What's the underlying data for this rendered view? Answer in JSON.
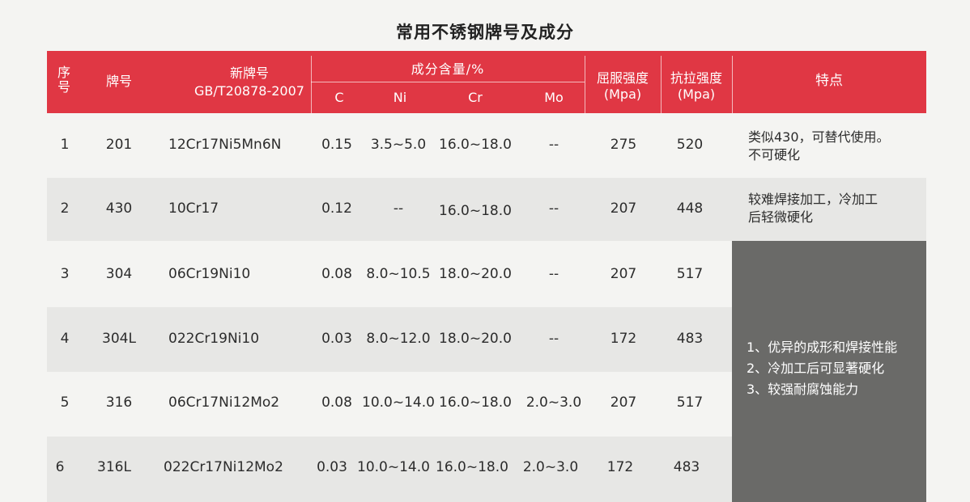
{
  "title": "常用不锈钢牌号及成分",
  "header": {
    "seq": "序号",
    "grade": "牌号",
    "new_grade_line1": "新牌号",
    "new_grade_line2": "GB/T20878-2007",
    "composition": "成分含量/%",
    "c": "C",
    "ni": "Ni",
    "cr": "Cr",
    "mo": "Mo",
    "yield": "屈服强度",
    "yield_unit": "(Mpa)",
    "tensile": "抗拉强度",
    "tensile_unit": "(Mpa)",
    "feature": "特点"
  },
  "rows": [
    {
      "seq": "1",
      "grade": "201",
      "new_grade": "12Cr17Ni5Mn6N",
      "c": "0.15",
      "ni": "3.5~5.0",
      "cr": "16.0~18.0",
      "mo": "--",
      "yield": "275",
      "tensile": "520",
      "feature_line1": "类似430，可替代使用。",
      "feature_line2": "不可硬化"
    },
    {
      "seq": "2",
      "grade": "430",
      "new_grade": "10Cr17",
      "c": "0.12",
      "ni": "--",
      "cr": "16.0~18.0",
      "mo": "--",
      "yield": "207",
      "tensile": "448",
      "feature_line1": "较难焊接加工，冷加工",
      "feature_line2": "后轻微硬化"
    },
    {
      "seq": "3",
      "grade": "304",
      "new_grade": "06Cr19Ni10",
      "c": "0.08",
      "ni": "8.0~10.5",
      "cr": "18.0~20.0",
      "mo": "--",
      "yield": "207",
      "tensile": "517"
    },
    {
      "seq": "4",
      "grade": "304L",
      "new_grade": "022Cr19Ni10",
      "c": "0.03",
      "ni": "8.0~12.0",
      "cr": "18.0~20.0",
      "mo": "--",
      "yield": "172",
      "tensile": "483"
    },
    {
      "seq": "5",
      "grade": "316",
      "new_grade": "06Cr17Ni12Mo2",
      "c": "0.08",
      "ni": "10.0~14.0",
      "cr": "16.0~18.0",
      "mo": "2.0~3.0",
      "yield": "207",
      "tensile": "517"
    },
    {
      "seq": "6",
      "grade": "316L",
      "new_grade": "022Cr17Ni12Mo2",
      "c": "0.03",
      "ni": "10.0~14.0",
      "cr": "16.0~18.0",
      "mo": "2.0~3.0",
      "yield": "172",
      "tensile": "483"
    }
  ],
  "shared_feature": {
    "line1": "1、优异的成形和焊接性能",
    "line2": "2、冷加工后可显著硬化",
    "line3": "3、较强耐腐蚀能力"
  },
  "colors": {
    "header_bg": "#e03744",
    "feature_box_bg": "#6a6a68",
    "row_alt_bg": "#e7e7e5"
  }
}
